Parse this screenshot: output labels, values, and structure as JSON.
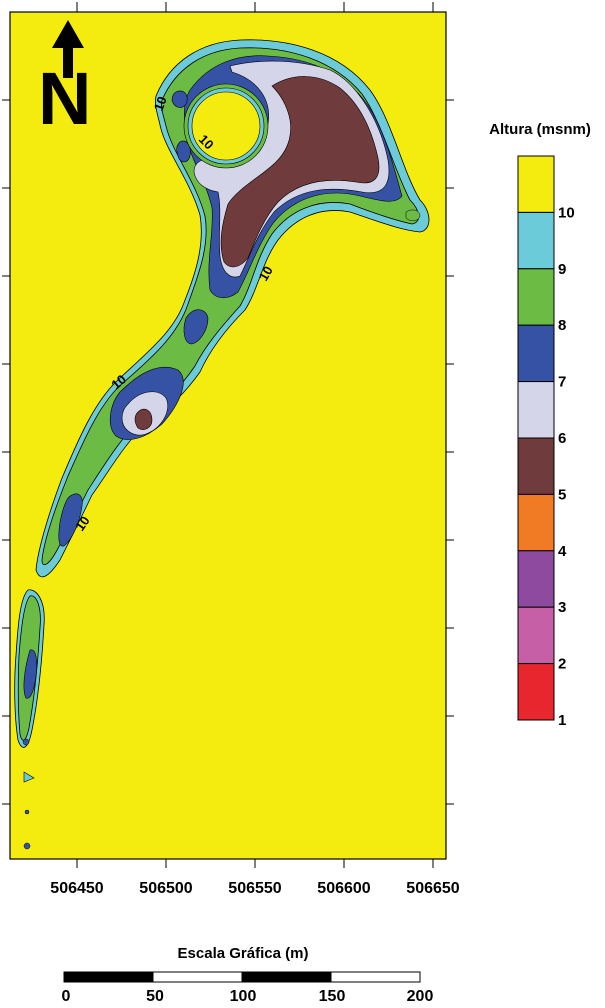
{
  "map": {
    "x_axis": {
      "tick_labels": [
        "506450",
        "506500",
        "506550",
        "506600",
        "506650"
      ],
      "values": [
        506450,
        506500,
        506550,
        506600,
        506650
      ]
    },
    "contour_labels": [
      "10",
      "10",
      "10",
      "10",
      "10"
    ],
    "background_level": 10
  },
  "legend": {
    "title": "Altura (msnm)",
    "levels": [
      {
        "label": "10",
        "color": "#f5ec0f"
      },
      {
        "label": "9",
        "color": "#6ccbd9"
      },
      {
        "label": "8",
        "color": "#6cbb45"
      },
      {
        "label": "7",
        "color": "#3652a5"
      },
      {
        "label": "6",
        "color": "#d5d5ea"
      },
      {
        "label": "5",
        "color": "#6f3b3c"
      },
      {
        "label": "4",
        "color": "#f17a24"
      },
      {
        "label": "3",
        "color": "#8e4a9f"
      },
      {
        "label": "2",
        "color": "#c65fa6"
      },
      {
        "label": "1",
        "color": "#e8262d"
      }
    ]
  },
  "scale_bar": {
    "title": "Escala Gráfica (m)",
    "labels": [
      "0",
      "50",
      "100",
      "150",
      "200"
    ]
  },
  "north_arrow": {
    "letter": "N",
    "icon": "north-arrow-icon"
  }
}
